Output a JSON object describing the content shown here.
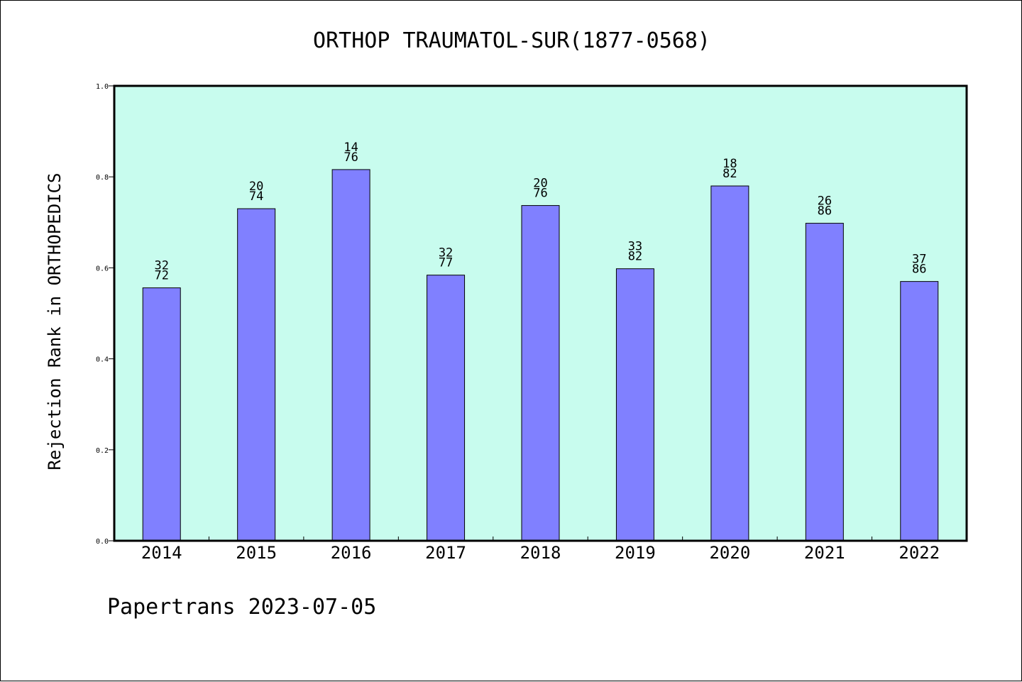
{
  "chart_data": {
    "type": "bar",
    "title": "ORTHOP TRAUMATOL-SUR(1877-0568)",
    "xlabel": "",
    "ylabel": "Rejection Rank in ORTHOPEDICS",
    "ylim": [
      0.0,
      1.0
    ],
    "y_ticks": [
      "0.0",
      "0.2",
      "0.4",
      "0.6",
      "0.8",
      "1.0"
    ],
    "categories": [
      "2014",
      "2015",
      "2016",
      "2017",
      "2018",
      "2019",
      "2020",
      "2021",
      "2022"
    ],
    "values": [
      0.556,
      0.73,
      0.816,
      0.584,
      0.737,
      0.598,
      0.78,
      0.698,
      0.57
    ],
    "data_labels": [
      [
        "32",
        "72"
      ],
      [
        "20",
        "74"
      ],
      [
        "14",
        "76"
      ],
      [
        "32",
        "77"
      ],
      [
        "20",
        "76"
      ],
      [
        "33",
        "82"
      ],
      [
        "18",
        "82"
      ],
      [
        "26",
        "86"
      ],
      [
        "37",
        "86"
      ]
    ],
    "grid": false,
    "legend": "none",
    "colors": {
      "bar_fill": "#8080ff",
      "plot_background": "#c8fcee",
      "axis": "#000000"
    }
  },
  "footer": {
    "text": "Papertrans 2023-07-05"
  }
}
